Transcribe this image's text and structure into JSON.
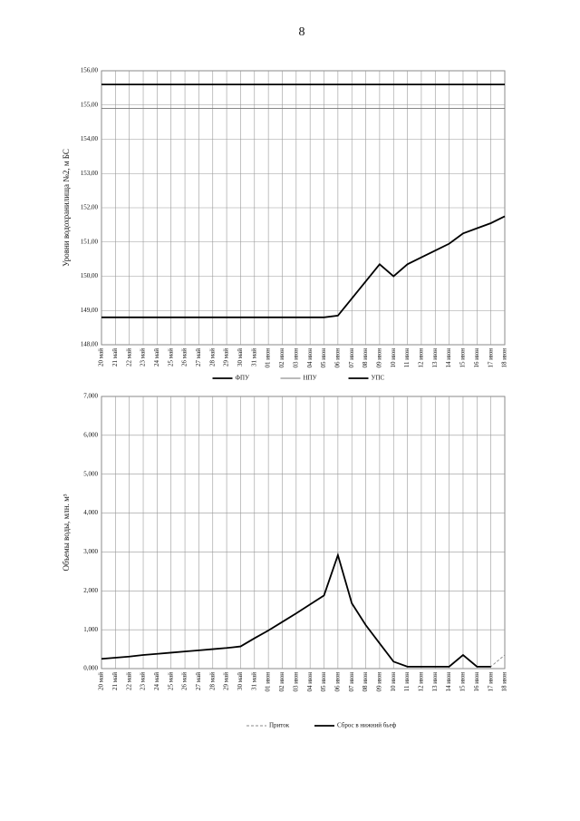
{
  "page_number": "8",
  "chart_data": [
    {
      "type": "line",
      "y_label": "Уровни водохранилища №2, м БС",
      "categories": [
        "20 май",
        "21 май",
        "22 май",
        "23 май",
        "24 май",
        "25 май",
        "26 май",
        "27 май",
        "28 май",
        "29 май",
        "30 май",
        "31 май",
        "01 июн",
        "02 июн",
        "03 июн",
        "04 июн",
        "05 июн",
        "06 июн",
        "07 июн",
        "08 июн",
        "09 июн",
        "10 июн",
        "11 июн",
        "12 июн",
        "13 июн",
        "14 июн",
        "15 июн",
        "16 июн",
        "17 июн",
        "18 июн"
      ],
      "series": [
        {
          "name": "ФПУ",
          "color": "#000000",
          "values": [
            155.6,
            155.6,
            155.6,
            155.6,
            155.6,
            155.6,
            155.6,
            155.6,
            155.6,
            155.6,
            155.6,
            155.6,
            155.6,
            155.6,
            155.6,
            155.6,
            155.6,
            155.6,
            155.6,
            155.6,
            155.6,
            155.6,
            155.6,
            155.6,
            155.6,
            155.6,
            155.6,
            155.6,
            155.6,
            155.6
          ]
        },
        {
          "name": "НПУ",
          "color": "#777777",
          "values": [
            154.9,
            154.9,
            154.9,
            154.9,
            154.9,
            154.9,
            154.9,
            154.9,
            154.9,
            154.9,
            154.9,
            154.9,
            154.9,
            154.9,
            154.9,
            154.9,
            154.9,
            154.9,
            154.9,
            154.9,
            154.9,
            154.9,
            154.9,
            154.9,
            154.9,
            154.9,
            154.9,
            154.9,
            154.9,
            154.9
          ]
        },
        {
          "name": "УПС",
          "color": "#000000",
          "values": [
            148.8,
            148.8,
            148.8,
            148.8,
            148.8,
            148.8,
            148.8,
            148.8,
            148.8,
            148.8,
            148.8,
            148.8,
            148.8,
            148.8,
            148.8,
            148.8,
            148.8,
            148.85,
            149.35,
            149.85,
            150.35,
            150.0,
            150.35,
            150.55,
            150.75,
            150.95,
            151.25,
            151.4,
            151.55,
            151.75
          ]
        }
      ],
      "ylim": [
        148,
        156
      ],
      "yticks": [
        {
          "value": 148,
          "label": "148,00"
        },
        {
          "value": 149,
          "label": "149,00"
        },
        {
          "value": 150,
          "label": "150,00"
        },
        {
          "value": 151,
          "label": "151,00"
        },
        {
          "value": 152,
          "label": "152,00"
        },
        {
          "value": 153,
          "label": "153,00"
        },
        {
          "value": 154,
          "label": "154,00"
        },
        {
          "value": 155,
          "label": "155,00"
        },
        {
          "value": 156,
          "label": "156,00"
        }
      ],
      "grid": true,
      "legend": "bottom"
    },
    {
      "type": "line",
      "y_label": "Объемы воды, млн. м³",
      "categories": [
        "20 май",
        "21 май",
        "22 май",
        "23 май",
        "24 май",
        "25 май",
        "26 май",
        "27 май",
        "28 май",
        "29 май",
        "30 май",
        "31 май",
        "01 июн",
        "02 июн",
        "03 июн",
        "04 июн",
        "05 июн",
        "06 июн",
        "07 июн",
        "08 июн",
        "09 июн",
        "10 июн",
        "11 июн",
        "12 июн",
        "13 июн",
        "14 июн",
        "15 июн",
        "16 июн",
        "17 июн",
        "18 июн"
      ],
      "series": [
        {
          "name": "Приток",
          "color": "#888888",
          "dash": true,
          "values": [
            0.25,
            0.28,
            0.31,
            0.35,
            0.38,
            0.41,
            0.44,
            0.47,
            0.5,
            0.53,
            0.57,
            0.78,
            0.98,
            1.2,
            1.42,
            1.65,
            1.88,
            2.92,
            1.68,
            1.12,
            0.65,
            0.18,
            0.05,
            0.05,
            0.05,
            0.05,
            0.35,
            0.05,
            0.05,
            0.35
          ]
        },
        {
          "name": "Сброс в нижний бьеф",
          "color": "#000000",
          "values": [
            0.25,
            0.28,
            0.31,
            0.35,
            0.38,
            0.41,
            0.44,
            0.47,
            0.5,
            0.53,
            0.57,
            0.78,
            0.98,
            1.2,
            1.42,
            1.65,
            1.88,
            2.92,
            1.68,
            1.12,
            0.65,
            0.18,
            0.05,
            0.05,
            0.05,
            0.05,
            0.35,
            0.05,
            0.05,
            null
          ]
        }
      ],
      "ylim": [
        0,
        7
      ],
      "yticks": [
        {
          "value": 0,
          "label": "0,000"
        },
        {
          "value": 1,
          "label": "1,000"
        },
        {
          "value": 2,
          "label": "2,000"
        },
        {
          "value": 3,
          "label": "3,000"
        },
        {
          "value": 4,
          "label": "4,000"
        },
        {
          "value": 5,
          "label": "5,000"
        },
        {
          "value": 6,
          "label": "6,000"
        },
        {
          "value": 7,
          "label": "7,000"
        }
      ],
      "grid": true,
      "legend": "bottom"
    }
  ]
}
